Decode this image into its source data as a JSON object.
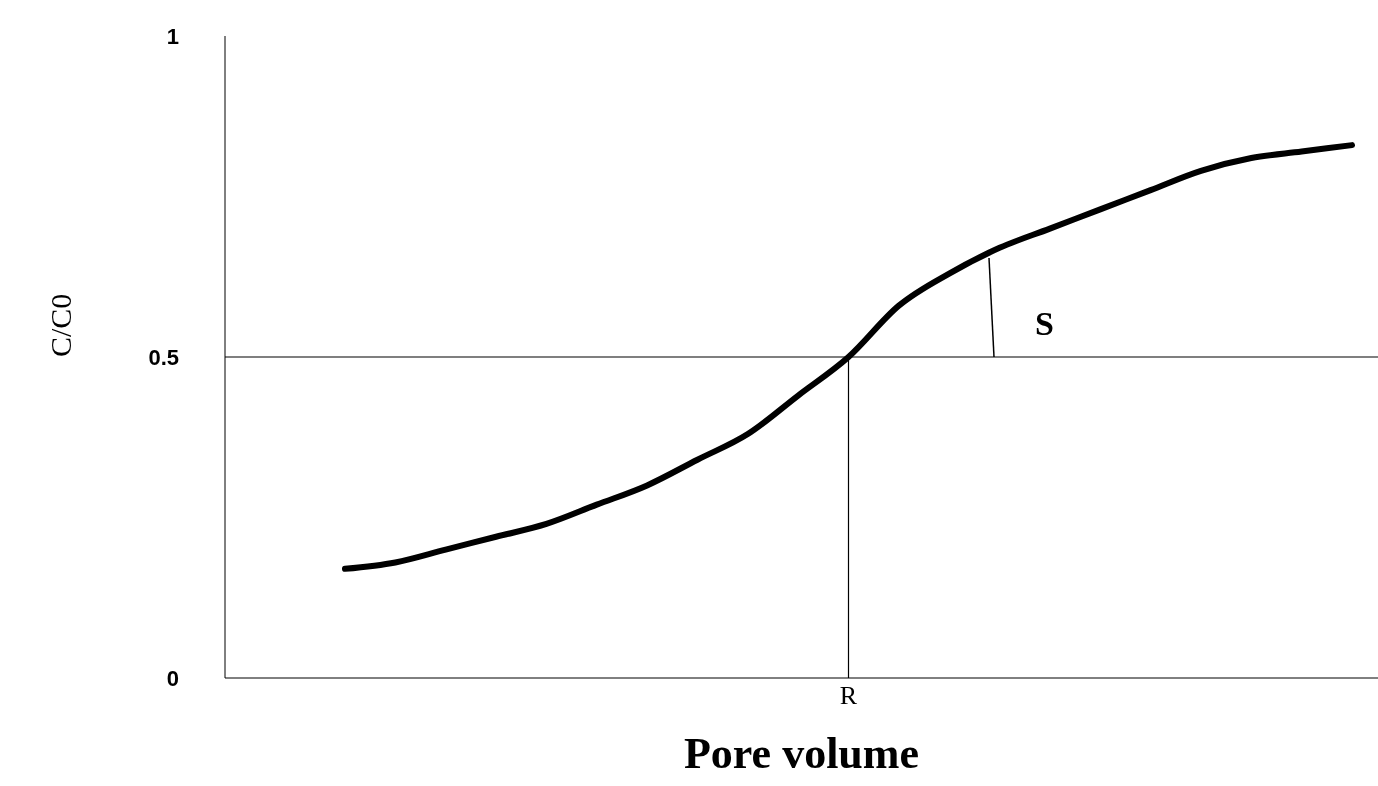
{
  "chart_data": {
    "type": "line",
    "xlabel": "Pore volume",
    "ylabel": "C/C0",
    "categories": [
      null,
      null,
      null,
      null,
      null,
      null,
      null,
      null,
      null,
      null,
      "R",
      null,
      null,
      null,
      null,
      null,
      null,
      null,
      null,
      null,
      null
    ],
    "series": [
      {
        "color": "#000000",
        "values": [
          0.17,
          0.18,
          0.2,
          0.22,
          0.24,
          0.27,
          0.3,
          0.34,
          0.38,
          0.44,
          0.5,
          0.58,
          0.63,
          0.67,
          0.7,
          0.73,
          0.76,
          0.79,
          0.81,
          0.82,
          0.83
        ]
      }
    ],
    "ylim": [
      0,
      1
    ],
    "yticks": [
      0,
      0.5,
      1
    ],
    "grid": false,
    "legend": false,
    "marker": "none",
    "line_style": "solid",
    "ref_lines": [
      {
        "axis": "y",
        "value": 0.5
      },
      {
        "axis": "x",
        "value": "R"
      }
    ],
    "annotations": [
      "S"
    ]
  }
}
